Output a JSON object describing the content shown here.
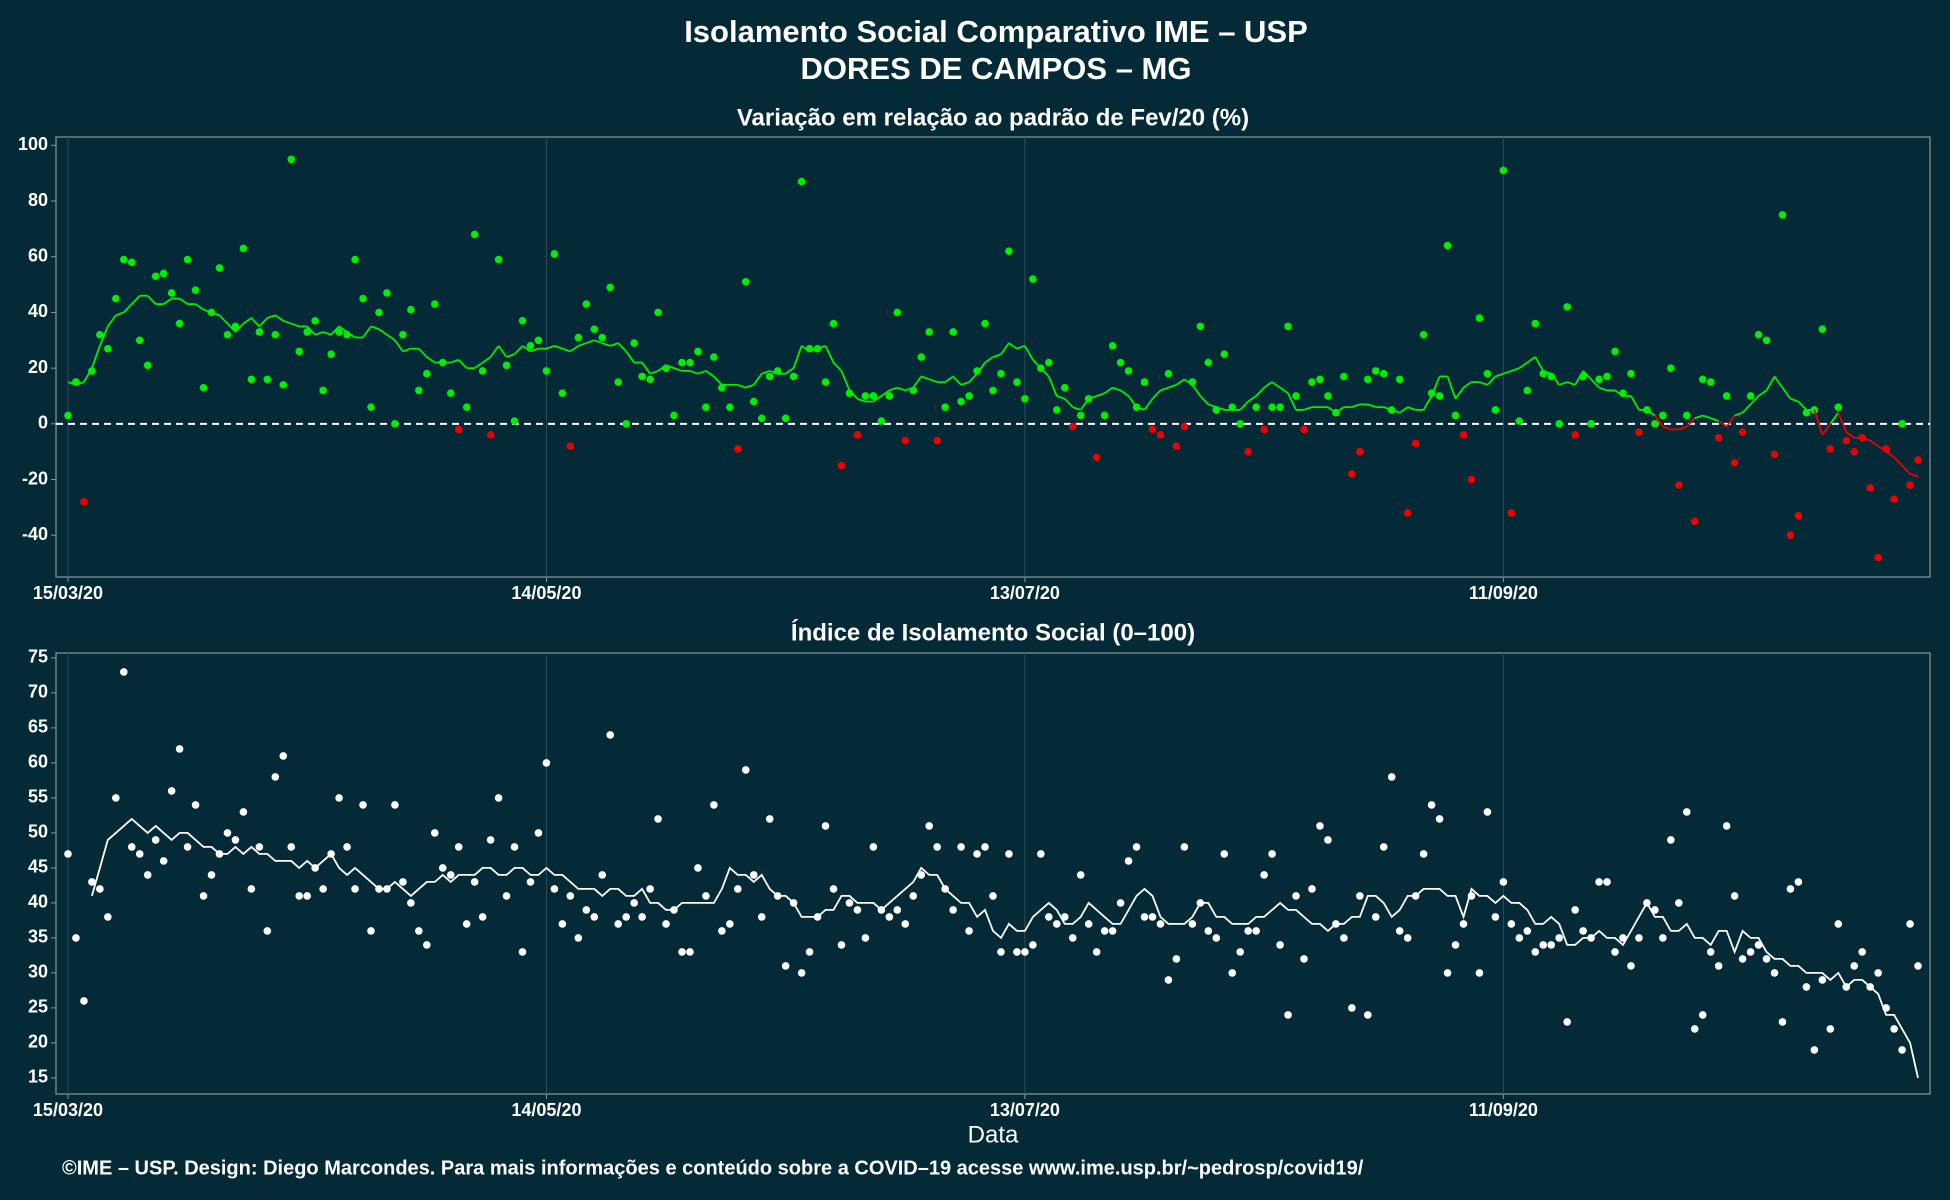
{
  "header": {
    "title": "Isolamento Social Comparativo IME – USP",
    "subtitle": "DORES DE CAMPOS – MG"
  },
  "footer": "©IME – USP. Design: Diego Marcondes. Para mais informações e conteúdo sobre a COVID–19 acesse www.ime.usp.br/~pedrosp/covid19/",
  "chart_data": [
    {
      "type": "scatter",
      "title": "Variação em relação ao padrão de Fev/20 (%)",
      "categories": [
        "15/03/20",
        null,
        null,
        null,
        null,
        null,
        null,
        null,
        null,
        null,
        null,
        null,
        null,
        null,
        null,
        null,
        null,
        null,
        null,
        null,
        null,
        null,
        null,
        null,
        null,
        null,
        null,
        null,
        null,
        null,
        null,
        null,
        null,
        null,
        null,
        null,
        null,
        null,
        null,
        null,
        null,
        null,
        null,
        null,
        null,
        null,
        null,
        null,
        null,
        null,
        null,
        null,
        null,
        null,
        null,
        null,
        null,
        null,
        null,
        null,
        "14/05/20",
        null,
        null,
        null,
        null,
        null,
        null,
        null,
        null,
        null,
        null,
        null,
        null,
        null,
        null,
        null,
        null,
        null,
        null,
        null,
        null,
        null,
        null,
        null,
        null,
        null,
        null,
        null,
        null,
        null,
        null,
        null,
        null,
        null,
        null,
        null,
        null,
        null,
        null,
        null,
        null,
        null,
        null,
        null,
        null,
        null,
        null,
        null,
        null,
        null,
        null,
        null,
        null,
        null,
        null,
        null,
        null,
        null,
        null,
        null,
        "13/07/20",
        null,
        null,
        null,
        null,
        null,
        null,
        null,
        null,
        null,
        null,
        null,
        null,
        null,
        null,
        null,
        null,
        null,
        null,
        null,
        null,
        null,
        null,
        null,
        null,
        null,
        null,
        null,
        null,
        null,
        null,
        null,
        null,
        null,
        null,
        null,
        null,
        null,
        null,
        null,
        null,
        null,
        null,
        null,
        null,
        null,
        null,
        null,
        null,
        null,
        null,
        null,
        null,
        null,
        null,
        null,
        null,
        null,
        null,
        null,
        "11/09/20",
        null,
        null,
        null,
        null,
        null,
        null,
        null,
        null,
        null,
        null,
        null,
        null,
        null,
        null,
        null,
        null,
        null,
        null,
        null,
        null,
        null,
        null,
        null,
        null,
        null,
        null,
        null,
        null,
        null,
        null,
        null,
        null,
        null,
        null,
        null,
        null,
        null,
        null,
        null,
        null,
        null,
        null,
        null,
        null,
        null,
        null,
        null,
        null,
        null,
        null,
        null,
        null
      ],
      "values": [
        3,
        15,
        -28,
        19,
        32,
        27,
        45,
        59,
        58,
        30,
        21,
        53,
        54,
        47,
        36,
        59,
        48,
        13,
        40,
        56,
        32,
        35,
        63,
        16,
        33,
        16,
        32,
        14,
        95,
        26,
        33,
        37,
        12,
        25,
        33,
        32,
        59,
        45,
        6,
        40,
        47,
        0,
        32,
        41,
        12,
        18,
        43,
        22,
        11,
        -2,
        6,
        68,
        19,
        -4,
        59,
        21,
        1,
        37,
        28,
        30,
        19,
        61,
        11,
        -8,
        31,
        43,
        34,
        31,
        49,
        15,
        0,
        29,
        17,
        16,
        40,
        20,
        3,
        22,
        22,
        26,
        6,
        24,
        13,
        6,
        -9,
        51,
        8,
        2,
        17,
        19,
        2,
        17,
        87,
        27,
        27,
        15,
        36,
        -15,
        11,
        -4,
        10,
        10,
        1,
        10,
        40,
        -6,
        12,
        24,
        33,
        -6,
        6,
        33,
        8,
        10,
        19,
        36,
        12,
        18,
        62,
        15,
        9,
        52,
        20,
        22,
        5,
        13,
        -1,
        3,
        9,
        -12,
        3,
        28,
        22,
        19,
        6,
        15,
        -2,
        -4,
        18,
        -8,
        -1,
        15,
        35,
        22,
        5,
        25,
        6,
        0,
        -10,
        6,
        -2,
        6,
        6,
        35,
        10,
        -2,
        15,
        16,
        10,
        4,
        17,
        -18,
        -10,
        16,
        19,
        18,
        5,
        16,
        -32,
        -7,
        32,
        11,
        10,
        64,
        3,
        -4,
        -20,
        38,
        18,
        5,
        91,
        -32,
        1,
        12,
        36,
        18,
        17,
        0,
        42,
        -4,
        17,
        0,
        16,
        17,
        26,
        11,
        18,
        -3,
        5,
        0,
        3,
        20,
        -22,
        3,
        -35,
        16,
        15,
        -5,
        10,
        -14,
        -3,
        10,
        32,
        30,
        -11,
        75,
        -40,
        -33,
        4,
        5,
        34,
        -9,
        6,
        -6,
        -10,
        -5,
        -23,
        -48,
        -9,
        -27,
        0,
        -22,
        -13
      ],
      "trend": [
        15,
        14,
        15,
        20,
        28,
        35,
        39,
        40,
        43,
        46,
        46,
        43,
        43,
        45,
        45,
        43,
        43,
        41,
        40,
        39,
        36,
        33,
        36,
        38,
        35,
        38,
        39,
        37,
        36,
        35,
        35,
        32,
        33,
        32,
        35,
        33,
        31,
        31,
        35,
        34,
        32,
        30,
        26,
        27,
        27,
        24,
        22,
        22,
        22,
        23,
        20,
        20,
        22,
        24,
        28,
        24,
        25,
        28,
        26,
        27,
        27,
        28,
        27,
        26,
        28,
        29,
        30,
        29,
        28,
        29,
        26,
        22,
        22,
        18,
        19,
        21,
        20,
        19,
        19,
        18,
        19,
        17,
        14,
        14,
        14,
        13,
        14,
        18,
        19,
        18,
        18,
        20,
        28,
        26,
        27,
        28,
        22,
        19,
        12,
        9,
        8,
        8,
        10,
        12,
        13,
        12,
        13,
        17,
        16,
        15,
        15,
        17,
        14,
        15,
        18,
        22,
        24,
        25,
        29,
        27,
        28,
        23,
        20,
        17,
        10,
        9,
        6,
        5,
        9,
        10,
        11,
        13,
        12,
        10,
        6,
        5,
        9,
        12,
        13,
        14,
        16,
        14,
        10,
        7,
        6,
        5,
        5,
        5,
        8,
        10,
        13,
        15,
        13,
        11,
        5,
        5,
        6,
        6,
        6,
        4,
        6,
        6,
        7,
        7,
        6,
        6,
        5,
        4,
        6,
        5,
        5,
        10,
        17,
        17,
        9,
        13,
        15,
        15,
        14,
        17,
        18,
        19,
        20,
        22,
        24,
        19,
        18,
        14,
        15,
        14,
        19,
        16,
        13,
        12,
        12,
        10,
        10,
        5,
        5,
        3,
        -1,
        -2,
        -2,
        -1,
        2,
        3,
        2,
        1,
        -1,
        3,
        4,
        7,
        10,
        12,
        17,
        13,
        9,
        8,
        5,
        5,
        -4,
        0,
        4,
        -3,
        -5,
        -5,
        -6,
        -8,
        -10,
        -12,
        -15,
        -18,
        -19
      ],
      "positive_color": "#00ee00",
      "negative_color": "#ee0000",
      "reference_line": 0,
      "reference_color": "#ffffff",
      "ylim": [
        -55,
        103
      ],
      "yticks": [
        -40,
        -20,
        0,
        20,
        40,
        60,
        80,
        100
      ],
      "grid": true
    },
    {
      "type": "scatter",
      "title": "Índice de Isolamento Social (0–100)",
      "xlabel": "Data",
      "categories": [
        "15/03/20",
        null,
        null,
        null,
        null,
        null,
        null,
        null,
        null,
        null,
        null,
        null,
        null,
        null,
        null,
        null,
        null,
        null,
        null,
        null,
        null,
        null,
        null,
        null,
        null,
        null,
        null,
        null,
        null,
        null,
        null,
        null,
        null,
        null,
        null,
        null,
        null,
        null,
        null,
        null,
        null,
        null,
        null,
        null,
        null,
        null,
        null,
        null,
        null,
        null,
        null,
        null,
        null,
        null,
        null,
        null,
        null,
        null,
        null,
        null,
        "14/05/20",
        null,
        null,
        null,
        null,
        null,
        null,
        null,
        null,
        null,
        null,
        null,
        null,
        null,
        null,
        null,
        null,
        null,
        null,
        null,
        null,
        null,
        null,
        null,
        null,
        null,
        null,
        null,
        null,
        null,
        null,
        null,
        null,
        null,
        null,
        null,
        null,
        null,
        null,
        null,
        null,
        null,
        null,
        null,
        null,
        null,
        null,
        null,
        null,
        null,
        null,
        null,
        null,
        null,
        null,
        null,
        null,
        null,
        null,
        null,
        "13/07/20",
        null,
        null,
        null,
        null,
        null,
        null,
        null,
        null,
        null,
        null,
        null,
        null,
        null,
        null,
        null,
        null,
        null,
        null,
        null,
        null,
        null,
        null,
        null,
        null,
        null,
        null,
        null,
        null,
        null,
        null,
        null,
        null,
        null,
        null,
        null,
        null,
        null,
        null,
        null,
        null,
        null,
        null,
        null,
        null,
        null,
        null,
        null,
        null,
        null,
        null,
        null,
        null,
        null,
        null,
        null,
        null,
        null,
        null,
        null,
        "11/09/20",
        null,
        null,
        null,
        null,
        null,
        null,
        null,
        null,
        null,
        null,
        null,
        null,
        null,
        null,
        null,
        null,
        null,
        null,
        null,
        null,
        null,
        null,
        null,
        null,
        null,
        null,
        null,
        null,
        null,
        null,
        null,
        null,
        null,
        null,
        null,
        null,
        null,
        null,
        null,
        null,
        null,
        null,
        null,
        null,
        null,
        null,
        null,
        null,
        null,
        null,
        null,
        null
      ],
      "values": [
        47,
        35,
        26,
        43,
        42,
        38,
        55,
        73,
        48,
        47,
        44,
        49,
        46,
        56,
        62,
        48,
        54,
        41,
        44,
        47,
        50,
        49,
        53,
        42,
        48,
        36,
        58,
        61,
        48,
        41,
        41,
        45,
        42,
        47,
        55,
        48,
        42,
        54,
        36,
        42,
        42,
        54,
        43,
        40,
        36,
        34,
        50,
        45,
        44,
        48,
        37,
        43,
        38,
        49,
        55,
        41,
        48,
        33,
        43,
        50,
        60,
        42,
        37,
        41,
        35,
        39,
        38,
        44,
        64,
        37,
        38,
        40,
        38,
        42,
        52,
        37,
        39,
        33,
        33,
        45,
        41,
        54,
        36,
        37,
        42,
        59,
        44,
        38,
        52,
        41,
        31,
        40,
        30,
        33,
        38,
        51,
        42,
        34,
        40,
        39,
        35,
        48,
        39,
        38,
        39,
        37,
        41,
        44,
        51,
        48,
        42,
        39,
        48,
        36,
        47,
        48,
        41,
        33,
        47,
        33,
        33,
        34,
        47,
        38,
        37,
        38,
        35,
        44,
        37,
        33,
        36,
        36,
        40,
        46,
        48,
        38,
        38,
        37,
        29,
        32,
        48,
        37,
        40,
        36,
        35,
        47,
        30,
        33,
        36,
        36,
        44,
        47,
        34,
        24,
        41,
        32,
        42,
        51,
        49,
        37,
        35,
        25,
        41,
        24,
        38,
        48,
        58,
        36,
        35,
        41,
        47,
        54,
        52,
        30,
        34,
        37,
        41,
        30,
        53,
        38,
        43,
        37,
        35,
        36,
        33,
        34,
        34,
        35,
        23,
        39,
        36,
        35,
        43,
        43,
        33,
        35,
        31,
        35,
        40,
        39,
        35,
        49,
        40,
        53,
        22,
        24,
        33,
        31,
        51,
        41,
        32,
        33,
        34,
        32,
        30,
        23,
        42,
        43,
        28,
        19,
        29,
        22,
        37,
        28,
        31,
        33,
        28,
        30,
        25,
        22,
        19,
        37,
        31
      ],
      "trend": [
        null,
        null,
        null,
        41,
        45,
        49,
        50,
        51,
        52,
        51,
        50,
        51,
        50,
        49,
        50,
        50,
        49,
        48,
        48,
        47,
        47,
        48,
        47,
        48,
        47,
        47,
        46,
        46,
        46,
        45,
        46,
        45,
        46,
        47,
        45,
        44,
        45,
        44,
        43,
        42,
        42,
        43,
        42,
        41,
        42,
        43,
        43,
        44,
        43,
        44,
        44,
        44,
        45,
        45,
        44,
        44,
        45,
        45,
        44,
        44,
        45,
        44,
        44,
        43,
        42,
        42,
        42,
        41,
        42,
        42,
        41,
        41,
        42,
        40,
        40,
        39,
        39,
        40,
        40,
        40,
        40,
        40,
        42,
        45,
        44,
        44,
        43,
        44,
        42,
        41,
        41,
        40,
        38,
        38,
        38,
        39,
        39,
        41,
        41,
        40,
        40,
        40,
        39,
        40,
        41,
        42,
        43,
        45,
        44,
        44,
        42,
        41,
        40,
        40,
        38,
        39,
        36,
        35,
        37,
        36,
        36,
        38,
        39,
        40,
        39,
        37,
        37,
        38,
        40,
        39,
        38,
        37,
        37,
        39,
        41,
        42,
        41,
        38,
        37,
        37,
        37,
        38,
        40,
        40,
        38,
        38,
        37,
        37,
        37,
        38,
        38,
        39,
        40,
        39,
        39,
        38,
        37,
        37,
        36,
        37,
        37,
        38,
        38,
        41,
        41,
        40,
        38,
        39,
        41,
        41,
        42,
        42,
        42,
        41,
        41,
        38,
        42,
        41,
        41,
        40,
        41,
        40,
        40,
        39,
        37,
        37,
        38,
        37,
        34,
        34,
        35,
        35,
        36,
        35,
        35,
        34,
        36,
        38,
        40,
        38,
        38,
        36,
        36,
        37,
        35,
        35,
        34,
        36,
        36,
        33,
        36,
        35,
        35,
        33,
        32,
        32,
        31,
        31,
        30,
        30,
        30,
        29,
        30,
        28,
        29,
        29,
        28,
        27,
        24,
        24,
        22,
        20,
        15
      ],
      "color": "#ffffff",
      "ylim": [
        12.7,
        75.7
      ],
      "yticks": [
        15,
        20,
        25,
        30,
        35,
        40,
        45,
        50,
        55,
        60,
        65,
        70,
        75
      ],
      "grid": true
    }
  ]
}
